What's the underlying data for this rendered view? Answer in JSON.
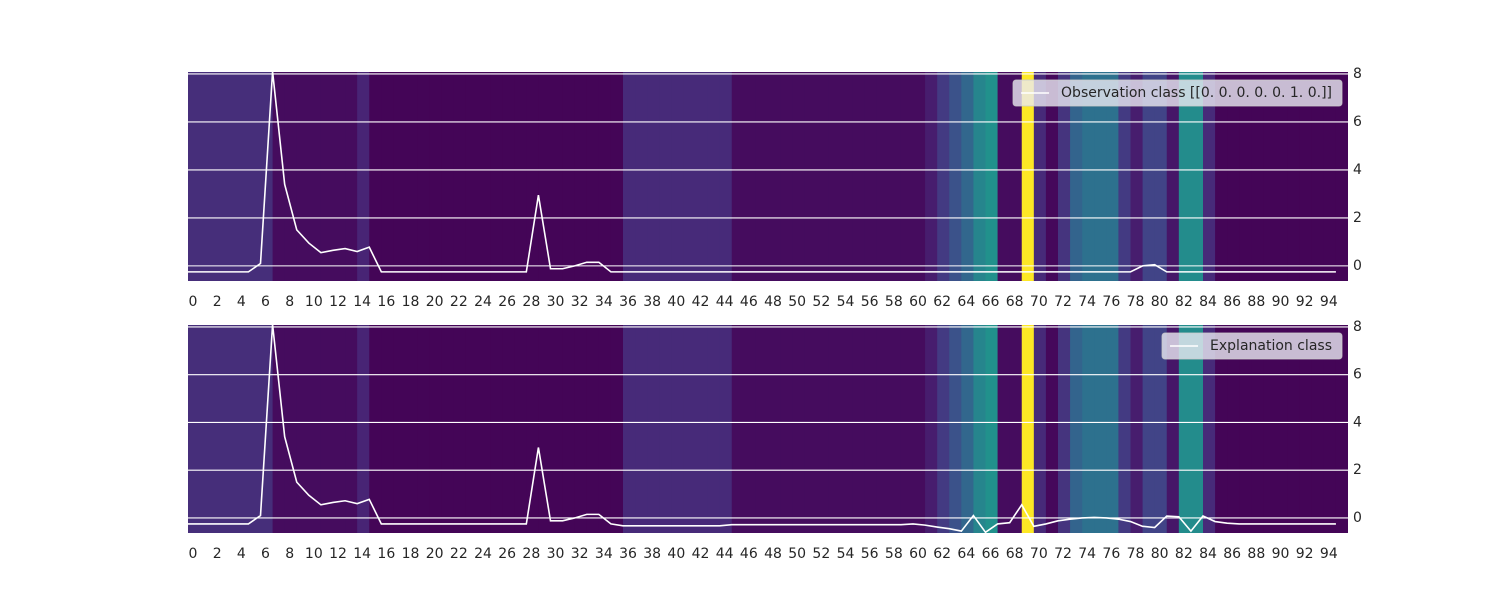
{
  "chart_data": [
    {
      "type": "heatmap",
      "colormap": "viridis",
      "grid": true,
      "legend": "upper right",
      "xlim": [
        0,
        96
      ],
      "ylim": [
        -0.63,
        8.08
      ],
      "xticks": [
        0,
        2,
        4,
        6,
        8,
        10,
        12,
        14,
        16,
        18,
        20,
        22,
        24,
        26,
        28,
        30,
        32,
        34,
        36,
        38,
        40,
        42,
        44,
        46,
        48,
        50,
        52,
        54,
        56,
        58,
        60,
        62,
        64,
        66,
        68,
        70,
        72,
        74,
        76,
        78,
        80,
        82,
        84,
        86,
        88,
        90,
        92,
        94
      ],
      "yticks": [
        0,
        2,
        4,
        6,
        8
      ],
      "heat": [
        0.13,
        0.13,
        0.13,
        0.13,
        0.13,
        0.13,
        0.13,
        0.03,
        0.03,
        0.03,
        0.03,
        0.03,
        0.03,
        0.03,
        0.1,
        0.01,
        0.01,
        0.01,
        0.01,
        0.01,
        0.01,
        0.01,
        0.01,
        0.01,
        0.01,
        0.01,
        0.01,
        0.01,
        0.01,
        0.01,
        0.01,
        0.01,
        0.01,
        0.01,
        0.01,
        0.01,
        0.12,
        0.12,
        0.12,
        0.12,
        0.12,
        0.12,
        0.12,
        0.12,
        0.12,
        0.03,
        0.03,
        0.03,
        0.03,
        0.03,
        0.03,
        0.03,
        0.03,
        0.03,
        0.03,
        0.03,
        0.03,
        0.03,
        0.03,
        0.03,
        0.03,
        0.08,
        0.17,
        0.25,
        0.33,
        0.45,
        0.5,
        0.03,
        0.03,
        1.0,
        0.12,
        0.02,
        0.15,
        0.32,
        0.37,
        0.37,
        0.37,
        0.17,
        0.08,
        0.2,
        0.2,
        0.06,
        0.48,
        0.48,
        0.12,
        0.01,
        0.01,
        0.01,
        0.01,
        0.01,
        0.01,
        0.01,
        0.01,
        0.01,
        0.01,
        0.01
      ],
      "series": [
        {
          "name": "Observation class [[0. 0. 0. 0. 0. 1. 0.]]",
          "color": "#ffffff",
          "values": [
            -0.25,
            -0.25,
            -0.25,
            -0.25,
            -0.25,
            -0.25,
            0.1,
            8.1,
            3.4,
            1.5,
            0.95,
            0.55,
            0.65,
            0.72,
            0.6,
            0.78,
            -0.25,
            -0.25,
            -0.25,
            -0.25,
            -0.25,
            -0.25,
            -0.25,
            -0.25,
            -0.25,
            -0.25,
            -0.25,
            -0.25,
            -0.25,
            2.95,
            -0.12,
            -0.12,
            0,
            0.15,
            0.15,
            -0.25,
            -0.25,
            -0.25,
            -0.25,
            -0.25,
            -0.25,
            -0.25,
            -0.25,
            -0.25,
            -0.25,
            -0.25,
            -0.25,
            -0.25,
            -0.25,
            -0.25,
            -0.25,
            -0.25,
            -0.25,
            -0.25,
            -0.25,
            -0.25,
            -0.25,
            -0.25,
            -0.25,
            -0.25,
            -0.25,
            -0.25,
            -0.25,
            -0.25,
            -0.25,
            -0.25,
            -0.25,
            -0.25,
            -0.25,
            -0.25,
            -0.25,
            -0.25,
            -0.25,
            -0.25,
            -0.25,
            -0.25,
            -0.25,
            -0.25,
            -0.25,
            0,
            0.05,
            -0.25,
            -0.25,
            -0.25,
            -0.25,
            -0.25,
            -0.25,
            -0.25,
            -0.25,
            -0.25,
            -0.25,
            -0.25,
            -0.25,
            -0.25,
            -0.25,
            -0.25
          ]
        }
      ]
    },
    {
      "type": "heatmap",
      "colormap": "viridis",
      "grid": true,
      "legend": "upper right",
      "xlim": [
        0,
        96
      ],
      "ylim": [
        -0.63,
        8.08
      ],
      "xticks": [
        0,
        2,
        4,
        6,
        8,
        10,
        12,
        14,
        16,
        18,
        20,
        22,
        24,
        26,
        28,
        30,
        32,
        34,
        36,
        38,
        40,
        42,
        44,
        46,
        48,
        50,
        52,
        54,
        56,
        58,
        60,
        62,
        64,
        66,
        68,
        70,
        72,
        74,
        76,
        78,
        80,
        82,
        84,
        86,
        88,
        90,
        92,
        94
      ],
      "yticks": [
        0,
        2,
        4,
        6,
        8
      ],
      "heat": [
        0.13,
        0.13,
        0.13,
        0.13,
        0.13,
        0.13,
        0.13,
        0.03,
        0.03,
        0.03,
        0.03,
        0.03,
        0.03,
        0.03,
        0.1,
        0.01,
        0.01,
        0.01,
        0.01,
        0.01,
        0.01,
        0.01,
        0.01,
        0.01,
        0.01,
        0.01,
        0.01,
        0.01,
        0.01,
        0.01,
        0.01,
        0.01,
        0.01,
        0.01,
        0.01,
        0.01,
        0.12,
        0.12,
        0.12,
        0.12,
        0.12,
        0.12,
        0.12,
        0.12,
        0.12,
        0.03,
        0.03,
        0.03,
        0.03,
        0.03,
        0.03,
        0.03,
        0.03,
        0.03,
        0.03,
        0.03,
        0.03,
        0.03,
        0.03,
        0.03,
        0.03,
        0.08,
        0.17,
        0.25,
        0.33,
        0.45,
        0.5,
        0.03,
        0.03,
        1.0,
        0.12,
        0.02,
        0.15,
        0.32,
        0.37,
        0.37,
        0.37,
        0.17,
        0.08,
        0.2,
        0.2,
        0.06,
        0.48,
        0.48,
        0.12,
        0.01,
        0.01,
        0.01,
        0.01,
        0.01,
        0.01,
        0.01,
        0.01,
        0.01,
        0.01,
        0.01
      ],
      "series": [
        {
          "name": "Explanation class",
          "color": "#ffffff",
          "values": [
            -0.25,
            -0.25,
            -0.25,
            -0.25,
            -0.25,
            -0.25,
            0.1,
            8.1,
            3.4,
            1.5,
            0.95,
            0.55,
            0.65,
            0.72,
            0.6,
            0.78,
            -0.25,
            -0.25,
            -0.25,
            -0.25,
            -0.25,
            -0.25,
            -0.25,
            -0.25,
            -0.25,
            -0.25,
            -0.25,
            -0.25,
            -0.25,
            2.95,
            -0.12,
            -0.12,
            0,
            0.15,
            0.15,
            -0.25,
            -0.33,
            -0.33,
            -0.33,
            -0.33,
            -0.33,
            -0.33,
            -0.33,
            -0.33,
            -0.33,
            -0.28,
            -0.28,
            -0.28,
            -0.28,
            -0.28,
            -0.28,
            -0.28,
            -0.28,
            -0.28,
            -0.28,
            -0.28,
            -0.28,
            -0.28,
            -0.28,
            -0.28,
            -0.25,
            -0.3,
            -0.38,
            -0.45,
            -0.55,
            0.1,
            -0.6,
            -0.25,
            -0.2,
            0.55,
            -0.35,
            -0.25,
            -0.12,
            -0.05,
            0,
            0.02,
            0,
            -0.05,
            -0.15,
            -0.35,
            -0.4,
            0.08,
            0.05,
            -0.55,
            0.08,
            -0.15,
            -0.22,
            -0.25,
            -0.25,
            -0.25,
            -0.25,
            -0.25,
            -0.25,
            -0.25,
            -0.25,
            -0.25
          ]
        }
      ]
    }
  ]
}
